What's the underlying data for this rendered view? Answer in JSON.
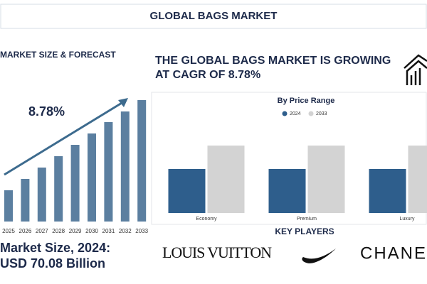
{
  "header": {
    "title": "GLOBAL BAGS MARKET"
  },
  "left_panel": {
    "title": "MARKET SIZE & FORECAST",
    "market_size_label": "Market Size, 2024:",
    "market_size_value": "USD 70.08 Billion"
  },
  "headline": [
    "THE GLOBAL BAGS MARKET IS GROWING",
    "AT CAGR OF 8.78%"
  ],
  "chart_data": [
    {
      "type": "bar",
      "annotation": "8.78%",
      "categories": [
        "2025",
        "2026",
        "2027",
        "2028",
        "2029",
        "2030",
        "2031",
        "2032",
        "2033"
      ],
      "values": [
        44,
        60,
        76,
        92,
        108,
        124,
        140,
        155,
        171
      ],
      "color": "#5b7fa0"
    },
    {
      "type": "bar",
      "title": "By Price Range",
      "categories": [
        "Economy",
        "Premium",
        "Luxury"
      ],
      "series": [
        {
          "name": "2024",
          "color": "#2e5e8c",
          "values": [
            62,
            62,
            62
          ]
        },
        {
          "name": "2033",
          "color": "#d3d3d3",
          "values": [
            95,
            95,
            95
          ]
        }
      ]
    }
  ],
  "key_players": {
    "title": "KEY PLAYERS",
    "brands": [
      "LOUIS VUITTON",
      "CHANEL"
    ]
  }
}
